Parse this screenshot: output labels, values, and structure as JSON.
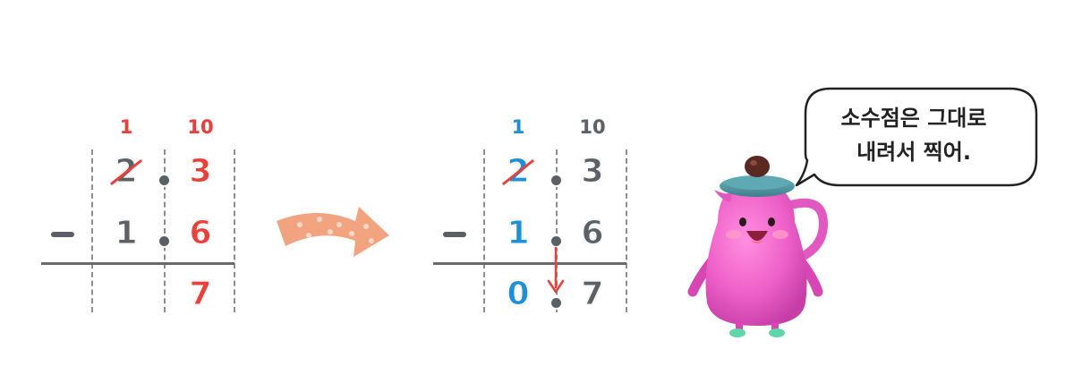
{
  "left_problem": {
    "carry_ones": "1",
    "carry_tenths": "10",
    "minuend_ones": "2",
    "minuend_tenths": "3",
    "operator": "−",
    "subtrahend_ones": "1",
    "subtrahend_tenths": "6",
    "result_tenths": "7"
  },
  "right_problem": {
    "carry_ones": "1",
    "carry_tenths": "10",
    "minuend_ones": "2",
    "minuend_tenths": "3",
    "operator": "−",
    "subtrahend_ones": "1",
    "subtrahend_tenths": "6",
    "result_ones": "0",
    "result_tenths": "7"
  },
  "speech_bubble": {
    "line1": "소수점은 그대로",
    "line2": "내려서 찍어."
  },
  "colors": {
    "red": "#e8403b",
    "blue": "#1f8fd6",
    "gray": "#5c6166",
    "arrow_orange": "#f2a37f",
    "mascot_pink": "#ee5fc8",
    "lid_teal": "#4f9aa6"
  },
  "icons": {
    "step_arrow": "curved-right-arrow-icon",
    "decimal_drop": "down-arrow-icon",
    "mascot": "pink-teapot-character"
  }
}
